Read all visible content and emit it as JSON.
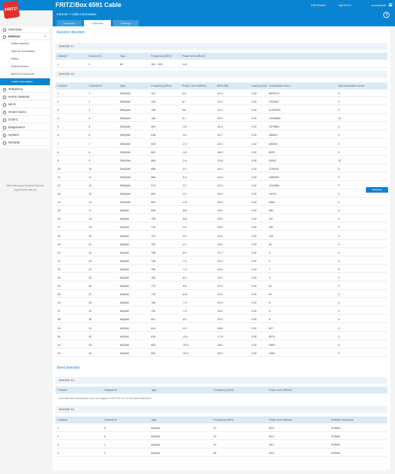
{
  "header": {
    "logo": "FRITZ!",
    "title": "FRITZ!Box 6591 Cable",
    "links": [
      "FRITZ!NAS",
      "MyFRITZ!",
      "monoadmin"
    ]
  },
  "subheader": {
    "breadcrumb": "Internet > Cable Information",
    "help": "?",
    "tabs": [
      "Overview",
      "Channels",
      "Settings"
    ]
  },
  "sidebar": {
    "items": [
      {
        "label": "Overview",
        "icon": "home-icon"
      },
      {
        "label": "Internet",
        "icon": "globe-icon"
      },
      {
        "label": "Telephony",
        "icon": "phone-icon"
      },
      {
        "label": "Home Network",
        "icon": "network-icon"
      },
      {
        "label": "Wi-Fi",
        "icon": "wifi-icon"
      },
      {
        "label": "Smart Home",
        "icon": "smarthome-icon"
      },
      {
        "label": "DVB-C",
        "icon": "tv-icon"
      },
      {
        "label": "Diagnostics",
        "icon": "diagnostics-icon"
      },
      {
        "label": "System",
        "icon": "system-icon"
      },
      {
        "label": "Wizards",
        "icon": "wizard-icon"
      }
    ],
    "sub_items": [
      "Online Monitor",
      "Type of Connection",
      "Filters",
      "Permit Access",
      "MyFRITZ! Account",
      "Cable Information"
    ],
    "footer": [
      "View: Advanced  Contents  Manual",
      "Legal Notice  avm.de"
    ]
  },
  "receive": {
    "title": "Receive direction",
    "docsis31": {
      "label": "DOCSIS 3.1",
      "headers": [
        "Channel",
        "Channel ID",
        "Type",
        "Frequency (MHz)",
        "Power level (dBmV)"
      ],
      "rows": [
        [
          "1",
          "0",
          "4K",
          "151 - 325",
          "-0.8"
        ]
      ]
    },
    "docsis30": {
      "label": "DOCSIS 3.0",
      "headers": [
        "Channel",
        "Channel ID",
        "Type",
        "Frequency (MHz)",
        "Power Level (dBmV)",
        "MSE (dB)",
        "Latency (ms)",
        "Correctable errors",
        "Non-correctable errors"
      ],
      "rows": [
        [
          "1",
          "1",
          "256QAM",
          "114",
          "8.3",
          "-31.3",
          "0.32",
          "9678179",
          "0"
        ],
        [
          "2",
          "2",
          "256QAM",
          "130",
          "6.7",
          "-31.4",
          "0.32",
          "7316187",
          "0"
        ],
        [
          "3",
          "3",
          "256QAM",
          "138",
          "5.6",
          "-31.1",
          "0.32",
          "11793190",
          "0"
        ],
        [
          "4",
          "4",
          "256QAM",
          "146",
          "5.1",
          "-30.9",
          "0.32",
          "13926850",
          "11"
        ],
        [
          "5",
          "5",
          "256QAM",
          "602",
          "-3.5",
          "-32.6",
          "0.32",
          "1379663",
          "0"
        ],
        [
          "6",
          "6",
          "256QAM",
          "618",
          "-3.2",
          "-32.7",
          "0.32",
          "495847",
          "0"
        ],
        [
          "7",
          "7",
          "256QAM",
          "626",
          "-2.9",
          "-32.7",
          "0.32",
          "660031",
          "0"
        ],
        [
          "8",
          "8",
          "256QAM",
          "642",
          "-1.8",
          "-34.3",
          "0.32",
          "6935",
          "0"
        ],
        [
          "9",
          "9",
          "256QAM",
          "650",
          "-2.4",
          "-33.5",
          "0.32",
          "43361",
          "12"
        ],
        [
          "10",
          "10",
          "256QAM",
          "658",
          "-4.2",
          "-32.3",
          "0.32",
          "1178152",
          "0"
        ],
        [
          "11",
          "11",
          "256QAM",
          "666",
          "-5.3",
          "-31.5",
          "0.32",
          "4482052",
          "0"
        ],
        [
          "12",
          "12",
          "256QAM",
          "674",
          "-3.7",
          "-32.4",
          "0.32",
          "1019348",
          "0"
        ],
        [
          "13",
          "13",
          "256QAM",
          "682",
          "-3.1",
          "-34.0",
          "0.32",
          "14743",
          "0"
        ],
        [
          "14",
          "14",
          "256QAM",
          "690",
          "-2.8",
          "-34.5",
          "0.32",
          "6364",
          "0"
        ],
        [
          "15",
          "17",
          "64QAM",
          "698",
          "-8.8",
          "-29.1",
          "0.32",
          "530",
          "0"
        ],
        [
          "16",
          "18",
          "64QAM",
          "706",
          "-8.8",
          "-28.9",
          "0.32",
          "207",
          "0"
        ],
        [
          "17",
          "19",
          "64QAM",
          "714",
          "-9.4",
          "-28.9",
          "0.32",
          "200",
          "0"
        ],
        [
          "18",
          "20",
          "64QAM",
          "722",
          "-9.0",
          "-29.0",
          "0.32",
          "116",
          "0"
        ],
        [
          "19",
          "21",
          "64QAM",
          "730",
          "-9.1",
          "-29.0",
          "0.32",
          "82",
          "0"
        ],
        [
          "20",
          "22",
          "64QAM",
          "738",
          "-8.0",
          "-29.7",
          "0.32",
          "9",
          "0"
        ],
        [
          "21",
          "23",
          "64QAM",
          "746",
          "-7.4",
          "-30.4",
          "0.32",
          "9",
          "0"
        ],
        [
          "22",
          "24",
          "64QAM",
          "754",
          "-7.2",
          "-30.4",
          "0.32",
          "7",
          "0"
        ],
        [
          "23",
          "25",
          "64QAM",
          "762",
          "-8.0",
          "-29.7",
          "0.32",
          "3",
          "0"
        ],
        [
          "24",
          "26",
          "64QAM",
          "770",
          "-8.6",
          "-29.2",
          "0.32",
          "90",
          "0"
        ],
        [
          "25",
          "27",
          "64QAM",
          "778",
          "-8.8",
          "-29.1",
          "0.32",
          "93",
          "0"
        ],
        [
          "26",
          "28",
          "64QAM",
          "786",
          "-7.9",
          "-29.9",
          "0.32",
          "8",
          "0"
        ],
        [
          "27",
          "29",
          "64QAM",
          "794",
          "-7.0",
          "-30.2",
          "0.32",
          "4",
          "0"
        ],
        [
          "28",
          "30",
          "64QAM",
          "802",
          "-8.0",
          "-30.0",
          "0.32",
          "9",
          "0"
        ],
        [
          "29",
          "31",
          "64QAM",
          "810",
          "-9.0",
          "-28.6",
          "0.32",
          "827",
          "0"
        ],
        [
          "30",
          "32",
          "64QAM",
          "818",
          "-11.0",
          "-27.8",
          "0.32",
          "5974",
          "0"
        ],
        [
          "31",
          "33",
          "64QAM",
          "826",
          "-10.5",
          "-28.0",
          "0.32",
          "4465",
          "0"
        ],
        [
          "32",
          "34",
          "64QAM",
          "834",
          "-10.9",
          "-28.3",
          "0.32",
          "1480",
          "0"
        ]
      ]
    }
  },
  "send": {
    "title": "Send direction",
    "docsis31": {
      "label": "DOCSIS 3.1",
      "headers": [
        "Channel",
        "Channel ID",
        "Type",
        "Frequency (MHz)",
        "Power level (dBmV)"
      ],
      "note": "Your internet connection does not support DOCSIS 3.1 in the send direction."
    },
    "docsis30": {
      "label": "DOCSIS 3.0",
      "headers": [
        "Channel",
        "Channel ID",
        "Type",
        "Frequency (MHz)",
        "Power level (dBmV)",
        "Multiplex technique"
      ],
      "rows": [
        [
          "1",
          "3",
          "64QAM",
          "37",
          "45.8",
          "ATDMA"
        ],
        [
          "2",
          "4",
          "64QAM",
          "31",
          "45.8",
          "ATDMA"
        ],
        [
          "3",
          "1",
          "64QAM",
          "51",
          "44.0",
          "ATDMA"
        ],
        [
          "4",
          "2",
          "64QAM",
          "45",
          "44.8",
          "ATDMA"
        ]
      ]
    }
  },
  "refresh_label": "Refresh"
}
